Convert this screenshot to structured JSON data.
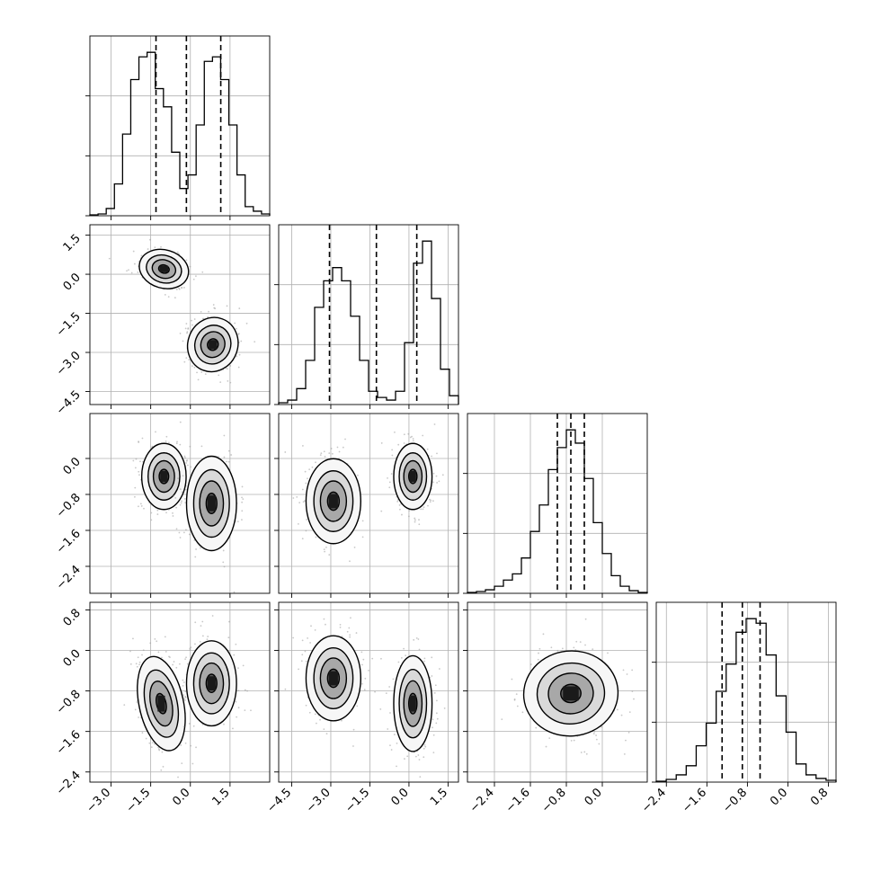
{
  "chart_data": {
    "type": "corner",
    "grid": true,
    "style": {
      "line_color": "#000000",
      "grid_color": "#b0b0b0",
      "fill_color": "#000000"
    },
    "params": [
      {
        "range": [
          -3.8,
          3.0
        ],
        "ticks": [
          "−3.0",
          "−1.5",
          "0.0",
          "1.5"
        ],
        "tick_values": [
          -3.0,
          -1.5,
          0.0,
          1.5
        ]
      },
      {
        "range": [
          -5.0,
          1.9
        ],
        "ticks": [
          "−4.5",
          "−3.0",
          "−1.5",
          "0.0",
          "1.5"
        ],
        "tick_values": [
          -4.5,
          -3.0,
          -1.5,
          0.0,
          1.5
        ]
      },
      {
        "range": [
          -3.0,
          1.0
        ],
        "ticks": [
          "−2.4",
          "−1.6",
          "−0.8",
          "0.0"
        ],
        "tick_values": [
          -2.4,
          -1.6,
          -0.8,
          0.0
        ]
      },
      {
        "range": [
          -2.6,
          0.95
        ],
        "ticks": [
          "−2.4",
          "−1.6",
          "−0.8",
          "0.0",
          "0.8"
        ],
        "tick_values": [
          -2.4,
          -1.6,
          -0.8,
          0.0,
          0.8
        ]
      }
    ],
    "histograms": [
      {
        "param": 0,
        "bins": [
          -3.8,
          3.0
        ],
        "counts": [
          1,
          2,
          8,
          35,
          90,
          150,
          175,
          180,
          140,
          120,
          70,
          30,
          45,
          100,
          170,
          175,
          150,
          100,
          45,
          10,
          5,
          2
        ],
        "quantiles": [
          -1.3,
          -0.15,
          1.15
        ]
      },
      {
        "param": 1,
        "bins": [
          -5.0,
          1.9
        ],
        "counts": [
          2,
          5,
          18,
          50,
          110,
          140,
          155,
          140,
          100,
          50,
          15,
          8,
          5,
          15,
          70,
          160,
          185,
          120,
          40,
          10
        ],
        "quantiles": [
          -3.05,
          -1.25,
          0.3
        ]
      },
      {
        "param": 2,
        "bins": [
          -3.0,
          1.0
        ],
        "counts": [
          1,
          2,
          4,
          8,
          15,
          22,
          40,
          70,
          100,
          140,
          165,
          185,
          170,
          130,
          80,
          45,
          20,
          8,
          3,
          1
        ],
        "quantiles": [
          -1.0,
          -0.7,
          -0.4
        ]
      },
      {
        "param": 3,
        "bins": [
          -2.6,
          0.95
        ],
        "counts": [
          1,
          3,
          8,
          18,
          40,
          65,
          100,
          130,
          165,
          180,
          175,
          140,
          95,
          55,
          20,
          8,
          4,
          2
        ],
        "quantiles": [
          -1.3,
          -0.9,
          -0.55
        ]
      }
    ],
    "pairs": [
      {
        "x": 0,
        "y": 1,
        "modes": [
          {
            "mu": [
              -1.0,
              0.2
            ],
            "sd": [
              0.45,
              0.35
            ],
            "rho": -0.4
          },
          {
            "mu": [
              0.85,
              -2.7
            ],
            "sd": [
              0.45,
              0.5
            ],
            "rho": -0.5
          }
        ]
      },
      {
        "x": 0,
        "y": 2,
        "modes": [
          {
            "mu": [
              -1.0,
              -0.4
            ],
            "sd": [
              0.4,
              0.35
            ],
            "rho": 0
          },
          {
            "mu": [
              0.8,
              -1.0
            ],
            "sd": [
              0.45,
              0.5
            ],
            "rho": 0
          }
        ]
      },
      {
        "x": 1,
        "y": 2,
        "modes": [
          {
            "mu": [
              -2.9,
              -0.95
            ],
            "sd": [
              0.5,
              0.45
            ],
            "rho": 0
          },
          {
            "mu": [
              0.15,
              -0.4
            ],
            "sd": [
              0.35,
              0.35
            ],
            "rho": 0
          }
        ]
      },
      {
        "x": 0,
        "y": 3,
        "modes": [
          {
            "mu": [
              -1.1,
              -1.05
            ],
            "sd": [
              0.4,
              0.45
            ],
            "rho": 0.3
          },
          {
            "mu": [
              0.8,
              -0.65
            ],
            "sd": [
              0.45,
              0.4
            ],
            "rho": 0
          }
        ]
      },
      {
        "x": 1,
        "y": 3,
        "modes": [
          {
            "mu": [
              -2.9,
              -0.55
            ],
            "sd": [
              0.5,
              0.4
            ],
            "rho": 0
          },
          {
            "mu": [
              0.15,
              -1.05
            ],
            "sd": [
              0.35,
              0.45
            ],
            "rho": 0
          }
        ]
      },
      {
        "x": 2,
        "y": 3,
        "modes": [
          {
            "mu": [
              -0.7,
              -0.85
            ],
            "sd": [
              0.5,
              0.4
            ],
            "rho": 0.15
          }
        ]
      }
    ]
  }
}
